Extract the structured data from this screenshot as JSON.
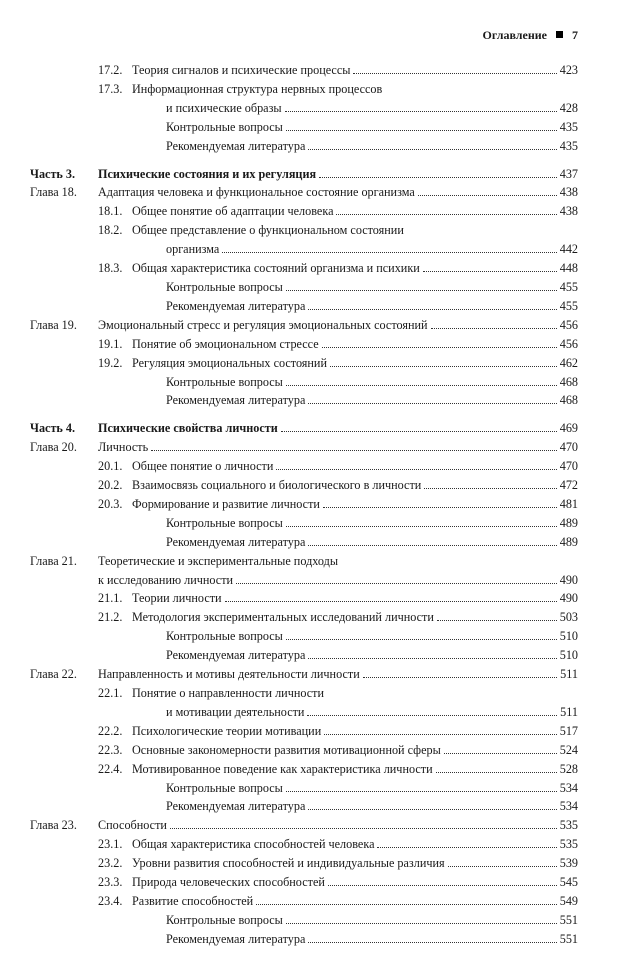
{
  "header": {
    "title": "Оглавление",
    "page": "7"
  },
  "lines": [
    {
      "label": "",
      "labelBold": false,
      "num": "17.2.",
      "text": "Теория сигналов и психические процессы",
      "bold": false,
      "page": "423"
    },
    {
      "label": "",
      "labelBold": false,
      "num": "17.3.",
      "text": "Информационная структура нервных процессов",
      "bold": false,
      "page": "",
      "noLeader": true
    },
    {
      "label": "",
      "labelBold": false,
      "num": "",
      "text": "и психические образы",
      "bold": false,
      "page": "428",
      "cont": true
    },
    {
      "label": "",
      "labelBold": false,
      "num": "",
      "text": "Контрольные вопросы",
      "bold": false,
      "page": "435",
      "cont": true
    },
    {
      "label": "",
      "labelBold": false,
      "num": "",
      "text": "Рекомендуемая литература",
      "bold": false,
      "page": "435",
      "cont": true
    },
    {
      "gap": true
    },
    {
      "label": "Часть  3.",
      "labelBold": true,
      "num": "",
      "noNum": true,
      "text": "Психические состояния и их регуляция",
      "bold": true,
      "page": "437"
    },
    {
      "label": "Глава 18.",
      "labelBold": false,
      "num": "",
      "noNum": true,
      "text": "Адаптация человека и функциональное состояние организма",
      "bold": false,
      "page": "438"
    },
    {
      "label": "",
      "labelBold": false,
      "num": "18.1.",
      "text": "Общее понятие об адаптации человека",
      "bold": false,
      "page": "438"
    },
    {
      "label": "",
      "labelBold": false,
      "num": "18.2.",
      "text": "Общее представление о функциональном состоянии",
      "bold": false,
      "page": "",
      "noLeader": true
    },
    {
      "label": "",
      "labelBold": false,
      "num": "",
      "text": "организма",
      "bold": false,
      "page": "442",
      "cont": true
    },
    {
      "label": "",
      "labelBold": false,
      "num": "18.3.",
      "text": "Общая характеристика состояний организма и психики",
      "bold": false,
      "page": "448"
    },
    {
      "label": "",
      "labelBold": false,
      "num": "",
      "text": "Контрольные вопросы",
      "bold": false,
      "page": "455",
      "cont": true
    },
    {
      "label": "",
      "labelBold": false,
      "num": "",
      "text": "Рекомендуемая литература",
      "bold": false,
      "page": "455",
      "cont": true
    },
    {
      "label": "Глава 19.",
      "labelBold": false,
      "num": "",
      "noNum": true,
      "text": "Эмоциональный стресс и регуляция эмоциональных состояний",
      "bold": false,
      "page": "456"
    },
    {
      "label": "",
      "labelBold": false,
      "num": "19.1.",
      "text": "Понятие об эмоциональном стрессе",
      "bold": false,
      "page": "456"
    },
    {
      "label": "",
      "labelBold": false,
      "num": "19.2.",
      "text": "Регуляция эмоциональных состояний",
      "bold": false,
      "page": "462"
    },
    {
      "label": "",
      "labelBold": false,
      "num": "",
      "text": "Контрольные вопросы",
      "bold": false,
      "page": "468",
      "cont": true
    },
    {
      "label": "",
      "labelBold": false,
      "num": "",
      "text": "Рекомендуемая литература",
      "bold": false,
      "page": "468",
      "cont": true
    },
    {
      "gap": true
    },
    {
      "label": "Часть  4.",
      "labelBold": true,
      "num": "",
      "noNum": true,
      "text": "Психические свойства личности",
      "bold": true,
      "page": "469"
    },
    {
      "label": "Глава 20.",
      "labelBold": false,
      "num": "",
      "noNum": true,
      "text": "Личность",
      "bold": false,
      "page": "470"
    },
    {
      "label": "",
      "labelBold": false,
      "num": "20.1.",
      "text": "Общее понятие о личности",
      "bold": false,
      "page": "470"
    },
    {
      "label": "",
      "labelBold": false,
      "num": "20.2.",
      "text": "Взаимосвязь социального и биологического в личности",
      "bold": false,
      "page": "472"
    },
    {
      "label": "",
      "labelBold": false,
      "num": "20.3.",
      "text": "Формирование и развитие личности",
      "bold": false,
      "page": "481"
    },
    {
      "label": "",
      "labelBold": false,
      "num": "",
      "text": "Контрольные вопросы",
      "bold": false,
      "page": "489",
      "cont": true
    },
    {
      "label": "",
      "labelBold": false,
      "num": "",
      "text": "Рекомендуемая литература",
      "bold": false,
      "page": "489",
      "cont": true
    },
    {
      "label": "Глава 21.",
      "labelBold": false,
      "num": "",
      "noNum": true,
      "text": "Теоретические и экспериментальные подходы",
      "bold": false,
      "page": "",
      "noLeader": true
    },
    {
      "label": "",
      "labelBold": false,
      "num": "",
      "noNum": true,
      "text": "к исследованию личности",
      "bold": false,
      "page": "490",
      "labelPad": true
    },
    {
      "label": "",
      "labelBold": false,
      "num": "21.1.",
      "text": "Теории личности",
      "bold": false,
      "page": "490"
    },
    {
      "label": "",
      "labelBold": false,
      "num": "21.2.",
      "text": "Методология экспериментальных исследований личности",
      "bold": false,
      "page": "503"
    },
    {
      "label": "",
      "labelBold": false,
      "num": "",
      "text": "Контрольные вопросы",
      "bold": false,
      "page": "510",
      "cont": true
    },
    {
      "label": "",
      "labelBold": false,
      "num": "",
      "text": "Рекомендуемая литература",
      "bold": false,
      "page": "510",
      "cont": true
    },
    {
      "label": "Глава 22.",
      "labelBold": false,
      "num": "",
      "noNum": true,
      "text": "Направленность и мотивы деятельности личности",
      "bold": false,
      "page": "511"
    },
    {
      "label": "",
      "labelBold": false,
      "num": "22.1.",
      "text": "Понятие о направленности личности",
      "bold": false,
      "page": "",
      "noLeader": true
    },
    {
      "label": "",
      "labelBold": false,
      "num": "",
      "text": "и мотивации деятельности",
      "bold": false,
      "page": "511",
      "cont": true
    },
    {
      "label": "",
      "labelBold": false,
      "num": "22.2.",
      "text": "Психологические теории мотивации",
      "bold": false,
      "page": "517"
    },
    {
      "label": "",
      "labelBold": false,
      "num": "22.3.",
      "text": "Основные закономерности развития мотивационной сферы",
      "bold": false,
      "page": "524"
    },
    {
      "label": "",
      "labelBold": false,
      "num": "22.4.",
      "text": "Мотивированное поведение как характеристика личности",
      "bold": false,
      "page": "528"
    },
    {
      "label": "",
      "labelBold": false,
      "num": "",
      "text": "Контрольные вопросы",
      "bold": false,
      "page": "534",
      "cont": true
    },
    {
      "label": "",
      "labelBold": false,
      "num": "",
      "text": "Рекомендуемая литература",
      "bold": false,
      "page": "534",
      "cont": true
    },
    {
      "label": "Глава 23.",
      "labelBold": false,
      "num": "",
      "noNum": true,
      "text": "Способности",
      "bold": false,
      "page": "535"
    },
    {
      "label": "",
      "labelBold": false,
      "num": "23.1.",
      "text": "Общая характеристика способностей человека",
      "bold": false,
      "page": "535"
    },
    {
      "label": "",
      "labelBold": false,
      "num": "23.2.",
      "text": "Уровни развития способностей и индивидуальные различия",
      "bold": false,
      "page": "539"
    },
    {
      "label": "",
      "labelBold": false,
      "num": "23.3.",
      "text": "Природа человеческих способностей",
      "bold": false,
      "page": "545"
    },
    {
      "label": "",
      "labelBold": false,
      "num": "23.4.",
      "text": "Развитие способностей",
      "bold": false,
      "page": "549"
    },
    {
      "label": "",
      "labelBold": false,
      "num": "",
      "text": "Контрольные вопросы",
      "bold": false,
      "page": "551",
      "cont": true
    },
    {
      "label": "",
      "labelBold": false,
      "num": "",
      "text": "Рекомендуемая литература",
      "bold": false,
      "page": "551",
      "cont": true
    }
  ]
}
